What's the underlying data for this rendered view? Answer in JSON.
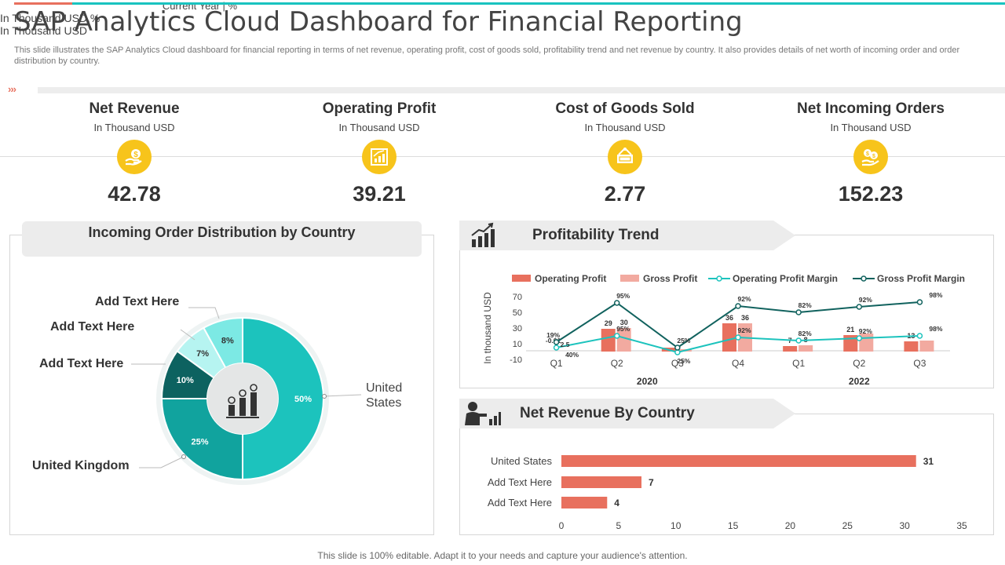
{
  "header": {
    "title": "SAP Analytics Cloud Dashboard for Financial Reporting",
    "subtitle": "This slide illustrates the SAP Analytics Cloud dashboard for financial reporting in terms of net revenue, operating profit, cost of goods sold, profitability trend and net revenue by country. It also provides details of net worth of incoming order and order distribution by country."
  },
  "colors": {
    "accent_red": "#e8705e",
    "accent_teal": "#19c3bf",
    "kpi_yellow": "#f7c41b"
  },
  "kpis": [
    {
      "title": "Net Revenue",
      "unit": "In Thousand USD",
      "value": "42.78",
      "icon": "dollar-hand-icon"
    },
    {
      "title": "Operating Profit",
      "unit": "In Thousand USD",
      "value": "39.21",
      "icon": "growth-chart-icon"
    },
    {
      "title": "Cost of Goods Sold",
      "unit": "In Thousand USD",
      "value": "2.77",
      "icon": "sold-sign-icon"
    },
    {
      "title": "Net Incoming Orders",
      "unit": "In Thousand USD",
      "value": "152.23",
      "icon": "coins-hand-icon"
    }
  ],
  "order_distribution": {
    "title": "Incoming Order Distribution by Country",
    "subtitle": "Current Year | %",
    "labels": {
      "united_states": "United\nStates",
      "united_kingdom": "United Kingdom",
      "add1": "Add Text Here",
      "add2": "Add Text Here",
      "add3": "Add Text Here"
    }
  },
  "profitability": {
    "title": "Profitability Trend",
    "unit_note": "In Thousand USD,%"
  },
  "net_revenue_country": {
    "title": "Net Revenue By Country",
    "unit_note": "In Thousand USD"
  },
  "chart_data": [
    {
      "type": "pie",
      "title": "Incoming Order Distribution by Country",
      "slices": [
        {
          "label": "United States",
          "value": 50,
          "color": "#1cc3bd"
        },
        {
          "label": "United Kingdom",
          "value": 25,
          "color": "#11a39e"
        },
        {
          "label": "Add Text Here",
          "value": 10,
          "color": "#0d6260"
        },
        {
          "label": "Add Text Here",
          "value": 7,
          "color": "#b6f4f1"
        },
        {
          "label": "Add Text Here",
          "value": 8,
          "color": "#7ce9e4"
        }
      ]
    },
    {
      "type": "bar",
      "title": "Profitability Trend",
      "ylabel": "In thousand USD",
      "ylim": [
        -10,
        70
      ],
      "yticks": [
        -10,
        10,
        30,
        50,
        70
      ],
      "categories": [
        "Q1",
        "Q2",
        "Q3",
        "Q4",
        "Q1",
        "Q2",
        "Q3"
      ],
      "groups": [
        {
          "label": "2020",
          "span": [
            0,
            3
          ]
        },
        {
          "label": "2022",
          "span": [
            4,
            6
          ]
        }
      ],
      "series": [
        {
          "name": "Operating Profit",
          "kind": "bar",
          "color": "#e8705e",
          "values": [
            0,
            29,
            5,
            36,
            7,
            21,
            13
          ],
          "labels": [
            "",
            "29",
            "",
            "36",
            "7",
            "21",
            "13"
          ]
        },
        {
          "name": "Gross Profit",
          "kind": "bar",
          "color": "#f2aaa0",
          "values": [
            0,
            30,
            3,
            36,
            8,
            23,
            14
          ],
          "labels": [
            "",
            "30",
            "",
            "36",
            "8",
            "",
            ""
          ]
        },
        {
          "name": "Operating Profit Margin",
          "kind": "line",
          "color": "#1cc3bd",
          "values": [
            5,
            20,
            -1,
            18,
            14,
            17,
            20
          ],
          "labels": [
            "-0.01",
            "95%",
            "25%",
            "92%",
            "82%",
            "92%",
            "98%"
          ]
        },
        {
          "name": "Gross Profit Margin",
          "kind": "line",
          "color": "#11625e",
          "values": [
            12,
            62,
            5,
            58,
            50,
            57,
            63
          ],
          "labels": [
            "19%",
            "95%",
            "25%",
            "92%",
            "82%",
            "92%",
            "98%"
          ]
        }
      ],
      "extra_labels": [
        "2.5",
        "40%"
      ]
    },
    {
      "type": "bar",
      "orientation": "horizontal",
      "title": "Net Revenue By Country",
      "categories": [
        "United States",
        "Add Text Here",
        "Add Text Here"
      ],
      "values": [
        31,
        7,
        4
      ],
      "xlim": [
        0,
        35
      ],
      "xticks": [
        0,
        5,
        10,
        15,
        20,
        25,
        30,
        35
      ],
      "color": "#e8705e"
    }
  ],
  "footer": {
    "text": "This slide is 100% editable. Adapt it to your needs and capture your audience's attention."
  }
}
